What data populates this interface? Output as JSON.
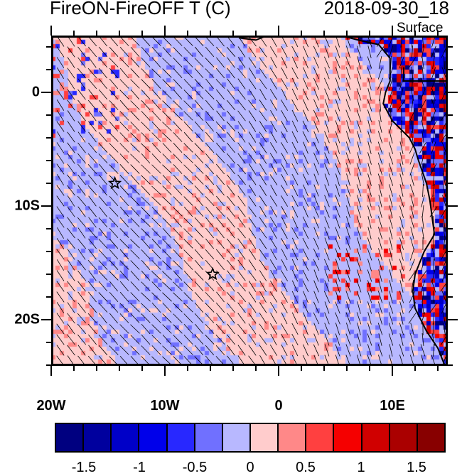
{
  "title": "FireON-FireOFF T (C)",
  "date": "2018-09-30_18",
  "level": "Surface",
  "axes": {
    "x_ticks": [
      {
        "lon": -20,
        "label": "20W"
      },
      {
        "lon": -10,
        "label": "10W"
      },
      {
        "lon": 0,
        "label": "0"
      },
      {
        "lon": 10,
        "label": "10E"
      }
    ],
    "y_ticks": [
      {
        "lat": 0,
        "label": "0"
      },
      {
        "lat": -10,
        "label": "10S"
      },
      {
        "lat": -20,
        "label": "20S"
      }
    ],
    "lon_range": [
      -20,
      15
    ],
    "lat_range": [
      -24,
      5
    ]
  },
  "markers": [
    {
      "type": "star",
      "lon": -14.4,
      "lat": -8
    },
    {
      "type": "star",
      "lon": -5.8,
      "lat": -16
    }
  ],
  "colorbar": {
    "colors": [
      "#000080",
      "#00009e",
      "#0000c8",
      "#0000ea",
      "#2828ff",
      "#7070ff",
      "#b8b8ff",
      "#ffcccc",
      "#ff8888",
      "#ff4040",
      "#f50000",
      "#d00000",
      "#aa0000",
      "#880000"
    ],
    "labels": [
      "-1.5",
      "-1",
      "-0.5",
      "0",
      "0.5",
      "1",
      "1.5"
    ]
  }
}
